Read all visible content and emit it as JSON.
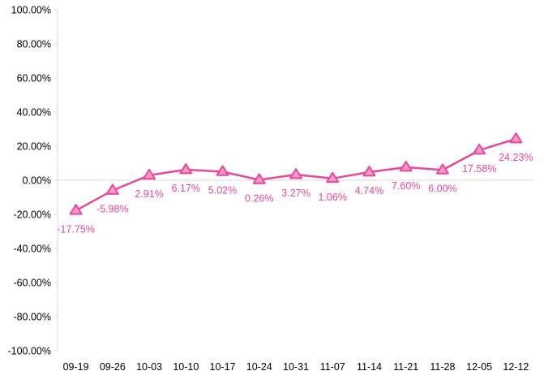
{
  "chart_data": {
    "type": "line",
    "title": "",
    "xlabel": "",
    "ylabel": "",
    "categories": [
      "09-19",
      "09-26",
      "10-03",
      "10-10",
      "10-17",
      "10-24",
      "10-31",
      "11-07",
      "11-14",
      "11-21",
      "11-28",
      "12-05",
      "12-12"
    ],
    "series": [
      {
        "values": [
          -17.75,
          -5.98,
          2.91,
          6.17,
          5.02,
          0.26,
          3.27,
          1.06,
          4.74,
          7.6,
          6.0,
          17.58,
          24.23
        ],
        "data_labels": [
          "-17.75%",
          "-5.98%",
          "2.91%",
          "6.17%",
          "5.02%",
          "0.26%",
          "3.27%",
          "1.06%",
          "4.74%",
          "7.60%",
          "6.00%",
          "17.58%",
          "24.23%"
        ],
        "color": "#e8479a",
        "marker_fill": "#f29ac8",
        "marker": "triangle"
      }
    ],
    "ylim": [
      -100,
      100
    ],
    "y_ticks": [
      100,
      80,
      60,
      40,
      20,
      0,
      -20,
      -40,
      -60,
      -80,
      -100
    ],
    "y_tick_labels": [
      "100.00%",
      "80.00%",
      "60.00%",
      "40.00%",
      "20.00%",
      "0.00%",
      "-20.00%",
      "-40.00%",
      "-60.00%",
      "-80.00%",
      "-100.00%"
    ],
    "grid": false,
    "legend": "none",
    "colors": {
      "axis": "#d9d9d9",
      "tick_text": "#000000",
      "label_text": "#e8479a"
    }
  }
}
